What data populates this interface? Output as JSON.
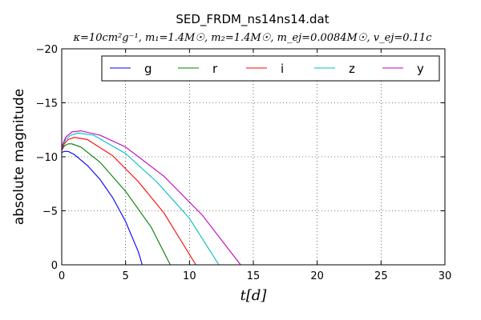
{
  "chart_data": {
    "type": "line",
    "title": "SED_FRDM_ns14ns14.dat",
    "subtitle": "κ=10cm²g⁻¹, m₁=1.4M☉, m₂=1.4M☉, m_ej=0.0084M☉, v_ej=0.11c",
    "xlabel": "t[d]",
    "ylabel": "absolute magnitude",
    "xlim": [
      0,
      30
    ],
    "ylim": [
      0,
      -20
    ],
    "y_inverted": true,
    "x_ticks": [
      0,
      5,
      10,
      15,
      20,
      25,
      30
    ],
    "y_ticks": [
      0,
      -5,
      -10,
      -15,
      -20
    ],
    "x_tick_labels": [
      "0",
      "5",
      "10",
      "15",
      "20",
      "25",
      "30"
    ],
    "y_tick_labels": [
      "0",
      "−5",
      "−10",
      "−15",
      "−20"
    ],
    "grid": true,
    "legend_position": "top",
    "series": [
      {
        "name": "g",
        "color": "#0000ff",
        "x": [
          0,
          0.2,
          0.5,
          1.0,
          2.0,
          3.0,
          4.0,
          5.0,
          6.0,
          6.3
        ],
        "y": [
          -10.4,
          -10.5,
          -10.5,
          -10.2,
          -9.2,
          -7.9,
          -6.2,
          -4.0,
          -1.2,
          0
        ]
      },
      {
        "name": "r",
        "color": "#008000",
        "x": [
          0,
          0.2,
          0.5,
          0.8,
          1.5,
          3.0,
          5.0,
          7.0,
          8.5
        ],
        "y": [
          -10.6,
          -11.0,
          -11.2,
          -11.2,
          -10.9,
          -9.5,
          -6.8,
          -3.5,
          0
        ]
      },
      {
        "name": "i",
        "color": "#ff0000",
        "x": [
          0,
          0.2,
          0.5,
          1.0,
          2.0,
          4.0,
          6.0,
          8.0,
          10.5
        ],
        "y": [
          -10.6,
          -11.2,
          -11.6,
          -11.8,
          -11.6,
          -10.1,
          -7.7,
          -4.8,
          0
        ]
      },
      {
        "name": "z",
        "color": "#00bfbf",
        "x": [
          0,
          0.3,
          0.7,
          1.3,
          2.5,
          5.0,
          7.5,
          10.0,
          12.3
        ],
        "y": [
          -10.8,
          -11.6,
          -12.0,
          -12.2,
          -12.0,
          -10.3,
          -7.6,
          -4.3,
          0
        ]
      },
      {
        "name": "y",
        "color": "#bf00bf",
        "x": [
          0,
          0.3,
          0.8,
          1.5,
          3.0,
          5.0,
          8.0,
          11.0,
          14.0
        ],
        "y": [
          -10.9,
          -11.8,
          -12.3,
          -12.4,
          -12.0,
          -10.9,
          -8.2,
          -4.6,
          0
        ]
      }
    ]
  }
}
